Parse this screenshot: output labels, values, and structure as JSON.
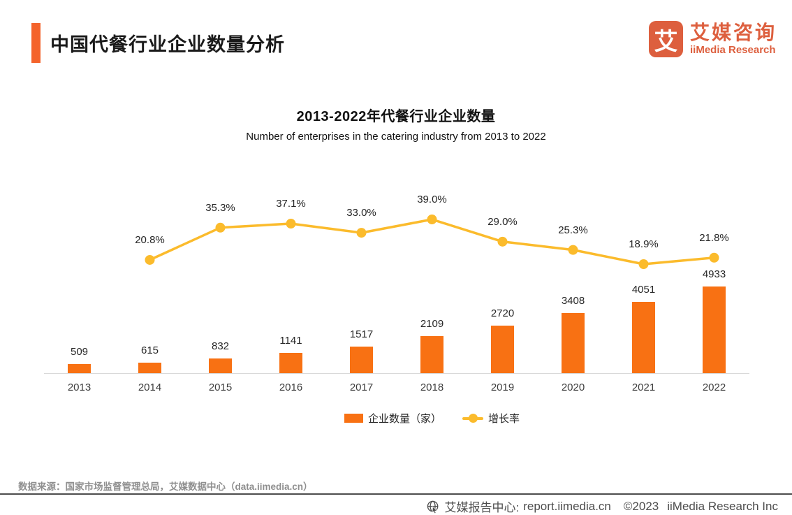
{
  "header": {
    "accent_color": "#F4632B",
    "title": "中国代餐行业企业数量分析",
    "logo": {
      "glyph": "艾",
      "name_cn": "艾媒咨询",
      "name_en": "iiMedia Research",
      "color": "#DD5F3E"
    }
  },
  "chart_data": {
    "type": "bar+line",
    "title": "2013-2022年代餐行业企业数量",
    "subtitle": "Number of enterprises in the catering industry from 2013 to 2022",
    "categories": [
      "2013",
      "2014",
      "2015",
      "2016",
      "2017",
      "2018",
      "2019",
      "2020",
      "2021",
      "2022"
    ],
    "series": [
      {
        "name": "企业数量（家）",
        "type": "bar",
        "color": "#F87113",
        "values": [
          509,
          615,
          832,
          1141,
          1517,
          2109,
          2720,
          3408,
          4051,
          4933
        ]
      },
      {
        "name": "增长率",
        "type": "line",
        "color": "#FBBB2C",
        "values": [
          null,
          20.8,
          35.3,
          37.1,
          33.0,
          39.0,
          29.0,
          25.3,
          18.9,
          21.8
        ],
        "labels": [
          "",
          "20.8%",
          "35.3%",
          "37.1%",
          "33.0%",
          "39.0%",
          "29.0%",
          "25.3%",
          "18.9%",
          "21.8%"
        ]
      }
    ],
    "legend_position": "bottom",
    "grid": false,
    "x_axis_line_color": "#d9d9d9"
  },
  "footer": {
    "source": "数据来源：国家市场监督管理总局，艾媒数据中心（data.iimedia.cn）",
    "bottom_bar": {
      "icon": "globe-cursor-icon",
      "site_label": "艾媒报告中心:",
      "url": "report.iimedia.cn",
      "copyright": "©2023",
      "company": "iiMedia Research Inc"
    }
  }
}
